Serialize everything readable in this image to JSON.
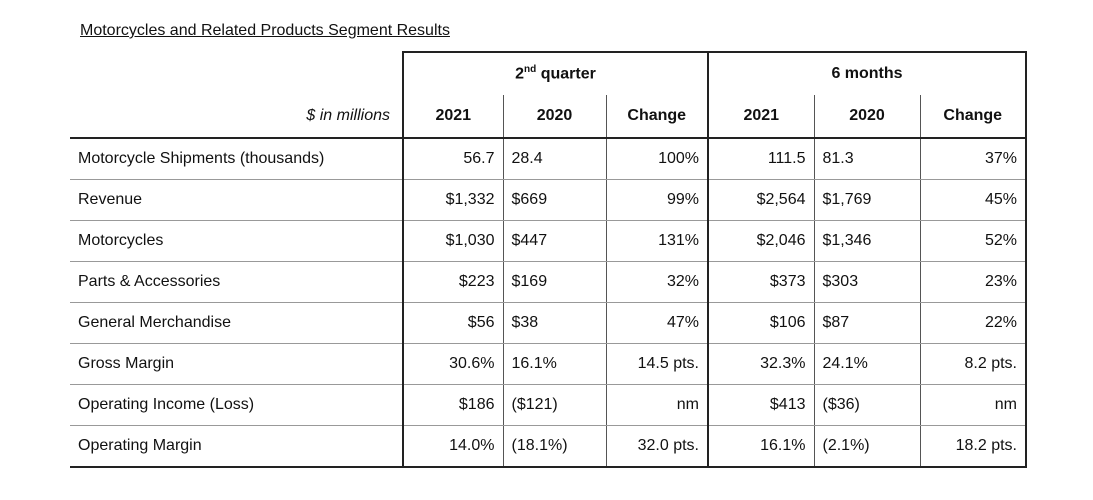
{
  "title": "Motorcycles and Related Products Segment Results",
  "header": {
    "units": "$ in millions",
    "group_q": "quarter",
    "group_q_prefix": "2",
    "group_q_sup": "nd",
    "group_6m": "6 months",
    "cols": [
      "2021",
      "2020",
      "Change",
      "2021",
      "2020",
      "Change"
    ]
  },
  "rows": [
    {
      "label": "Motorcycle Shipments (thousands)",
      "values": [
        "56.7",
        "28.4",
        "100%",
        "111.5",
        "81.3",
        "37%"
      ]
    },
    {
      "label": "Revenue",
      "values": [
        "$1,332",
        "$669",
        "99%",
        "$2,564",
        "$1,769",
        "45%"
      ]
    },
    {
      "label": "Motorcycles",
      "values": [
        "$1,030",
        "$447",
        "131%",
        "$2,046",
        "$1,346",
        "52%"
      ]
    },
    {
      "label": "Parts & Accessories",
      "values": [
        "$223",
        "$169",
        "32%",
        "$373",
        "$303",
        "23%"
      ]
    },
    {
      "label": "General Merchandise",
      "values": [
        "$56",
        "$38",
        "47%",
        "$106",
        "$87",
        "22%"
      ]
    },
    {
      "label": "Gross Margin",
      "values": [
        "30.6%",
        "16.1%",
        "14.5 pts.",
        "32.3%",
        "24.1%",
        "8.2 pts."
      ]
    },
    {
      "label": "Operating Income (Loss)",
      "values": [
        "$186",
        "($121)",
        "nm",
        "$413",
        "($36)",
        "nm"
      ]
    },
    {
      "label": "Operating Margin",
      "values": [
        "14.0%",
        "(18.1%)",
        "32.0 pts.",
        "16.1%",
        "(2.1%)",
        "18.2 pts."
      ]
    }
  ]
}
